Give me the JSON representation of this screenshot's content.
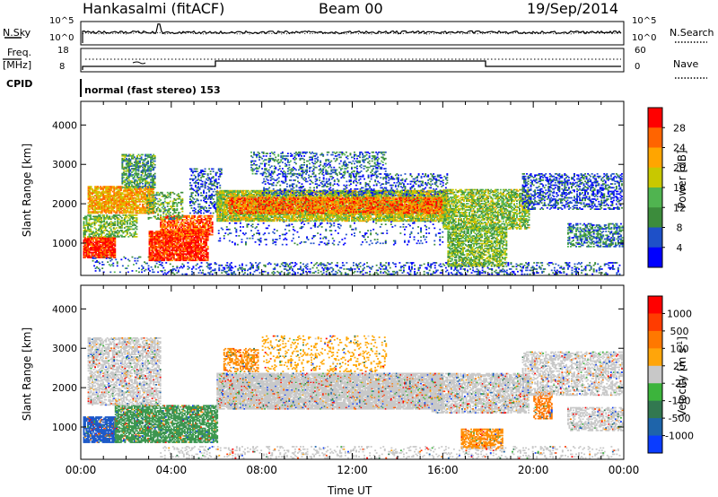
{
  "header": {
    "station": "Hankasalmi (fitACF)",
    "beam": "Beam 00",
    "date": "19/Sep/2014"
  },
  "top_panels": {
    "nsky_label": "N.Sky",
    "nsearch_label": "N.Search",
    "noise_ticks": [
      "10^5",
      "10^0"
    ],
    "freq_label_1": "Freq.",
    "freq_label_2": "[MHz]",
    "freq_ticks": [
      "18",
      "8"
    ],
    "nave_label": "Nave",
    "nave_ticks": [
      "60",
      "0"
    ],
    "cpid_label": "CPID",
    "cpid_text": "normal (fast stereo) 153"
  },
  "colors": {
    "power": [
      "#0000ff",
      "#1e50c8",
      "#3c8c3c",
      "#50b450",
      "#c8c800",
      "#ffa500",
      "#ff6400",
      "#ff0000"
    ],
    "velocity": [
      "#0a3cff",
      "#1e64aa",
      "#327850",
      "#3cb43c",
      "#c8c8c8",
      "#ffa50a",
      "#ff7800",
      "#ff3c00",
      "#ff0000"
    ]
  },
  "chart_data": [
    {
      "type": "heatmap",
      "panel": "power",
      "ylabel": "Slant Range [km]",
      "ylim": [
        180,
        4600
      ],
      "yticks": [
        1000,
        2000,
        3000,
        4000
      ],
      "xlim": [
        0,
        24
      ],
      "colorbar_label": "Power [dB]",
      "colorbar_ticks": [
        "4",
        "8",
        "12",
        "16",
        "20",
        "24",
        "28"
      ],
      "colorbar_range": [
        0,
        32
      ],
      "regions": [
        {
          "t0": 0.1,
          "t1": 1.5,
          "r0": 620,
          "r1": 1150,
          "v": 29,
          "d": 0.9
        },
        {
          "t0": 0.1,
          "t1": 2.5,
          "r0": 1150,
          "r1": 1700,
          "v": 14,
          "d": 0.6
        },
        {
          "t0": 0.3,
          "t1": 3.2,
          "r0": 1750,
          "r1": 2450,
          "v": 22,
          "d": 0.8
        },
        {
          "t0": 1.8,
          "t1": 3.3,
          "r0": 2400,
          "r1": 3250,
          "v": 11,
          "d": 0.6
        },
        {
          "t0": 0.5,
          "t1": 3.6,
          "r0": 250,
          "r1": 650,
          "v": 7,
          "d": 0.15
        },
        {
          "t0": 3.0,
          "t1": 5.6,
          "r0": 550,
          "r1": 1300,
          "v": 29,
          "d": 0.85
        },
        {
          "t0": 3.5,
          "t1": 5.8,
          "r0": 1200,
          "r1": 1700,
          "v": 27,
          "d": 0.7
        },
        {
          "t0": 2.9,
          "t1": 4.5,
          "r0": 1600,
          "r1": 2300,
          "v": 13,
          "d": 0.4
        },
        {
          "t0": 4.8,
          "t1": 6.2,
          "r0": 1750,
          "r1": 2900,
          "v": 6,
          "d": 0.35
        },
        {
          "t0": 6.0,
          "t1": 16.2,
          "r0": 1550,
          "r1": 2350,
          "v": 17,
          "d": 0.85
        },
        {
          "t0": 6.5,
          "t1": 16.0,
          "r0": 1750,
          "r1": 2150,
          "v": 26,
          "d": 0.6
        },
        {
          "t0": 8.0,
          "t1": 16.2,
          "r0": 2200,
          "r1": 2750,
          "v": 6,
          "d": 0.25
        },
        {
          "t0": 6.0,
          "t1": 16.0,
          "r0": 950,
          "r1": 1550,
          "v": 5,
          "d": 0.1
        },
        {
          "t0": 3.5,
          "t1": 23.8,
          "r0": 200,
          "r1": 520,
          "v": 6,
          "d": 0.25
        },
        {
          "t0": 16.0,
          "t1": 19.8,
          "r0": 1350,
          "r1": 2350,
          "v": 15,
          "d": 0.65
        },
        {
          "t0": 16.2,
          "t1": 18.8,
          "r0": 400,
          "r1": 1400,
          "v": 14,
          "d": 0.65
        },
        {
          "t0": 19.5,
          "t1": 23.9,
          "r0": 1850,
          "r1": 2750,
          "v": 6,
          "d": 0.4
        },
        {
          "t0": 21.5,
          "t1": 23.9,
          "r0": 900,
          "r1": 1500,
          "v": 9,
          "d": 0.5
        },
        {
          "t0": 7.5,
          "t1": 13.5,
          "r0": 2750,
          "r1": 3300,
          "v": 8,
          "d": 0.3
        }
      ]
    },
    {
      "type": "heatmap",
      "panel": "velocity",
      "ylabel": "Slant Range [km]",
      "ylim": [
        180,
        4600
      ],
      "yticks": [
        1000,
        2000,
        3000,
        4000
      ],
      "xlim": [
        0,
        24
      ],
      "xticks": [
        "00:00",
        "04:00",
        "08:00",
        "12:00",
        "16:00",
        "20:00",
        "00:00"
      ],
      "xlabel": "Time UT",
      "colorbar_label": "Velocity [m s^-1]",
      "colorbar_ticks": [
        "1000",
        "500",
        "100",
        "25",
        "-25",
        "-100",
        "-500",
        "-1000"
      ],
      "regions": [
        {
          "t0": 0.1,
          "t1": 1.5,
          "r0": 600,
          "r1": 1250,
          "v": "#1e5ac8",
          "d": 0.85
        },
        {
          "t0": 1.5,
          "t1": 6.0,
          "r0": 600,
          "r1": 1550,
          "v": "#3c9650",
          "d": 0.75
        },
        {
          "t0": 0.3,
          "t1": 3.5,
          "r0": 1550,
          "r1": 3250,
          "v": "#c8c8c8",
          "d": 0.6
        },
        {
          "t0": 6.0,
          "t1": 16.0,
          "r0": 1450,
          "r1": 2350,
          "v": "#c8c8c8",
          "d": 0.9
        },
        {
          "t0": 6.3,
          "t1": 7.8,
          "r0": 2400,
          "r1": 3000,
          "v": "#ff8c00",
          "d": 0.5
        },
        {
          "t0": 15.5,
          "t1": 19.8,
          "r0": 1350,
          "r1": 2350,
          "v": "#c8c8c8",
          "d": 0.7
        },
        {
          "t0": 16.8,
          "t1": 18.6,
          "r0": 450,
          "r1": 950,
          "v": "#ff8c00",
          "d": 0.7
        },
        {
          "t0": 20.0,
          "t1": 20.8,
          "r0": 1200,
          "r1": 1900,
          "v": "#ff7800",
          "d": 0.6
        },
        {
          "t0": 19.5,
          "t1": 23.9,
          "r0": 1800,
          "r1": 2900,
          "v": "#c8c8c8",
          "d": 0.5
        },
        {
          "t0": 8.0,
          "t1": 13.5,
          "r0": 2400,
          "r1": 3300,
          "v": "#ffa500",
          "d": 0.18
        },
        {
          "t0": 21.5,
          "t1": 23.9,
          "r0": 900,
          "r1": 1500,
          "v": "#c8c8c8",
          "d": 0.55
        },
        {
          "t0": 3.5,
          "t1": 23.8,
          "r0": 200,
          "r1": 520,
          "v": "#c8c8c8",
          "d": 0.2
        }
      ]
    }
  ]
}
